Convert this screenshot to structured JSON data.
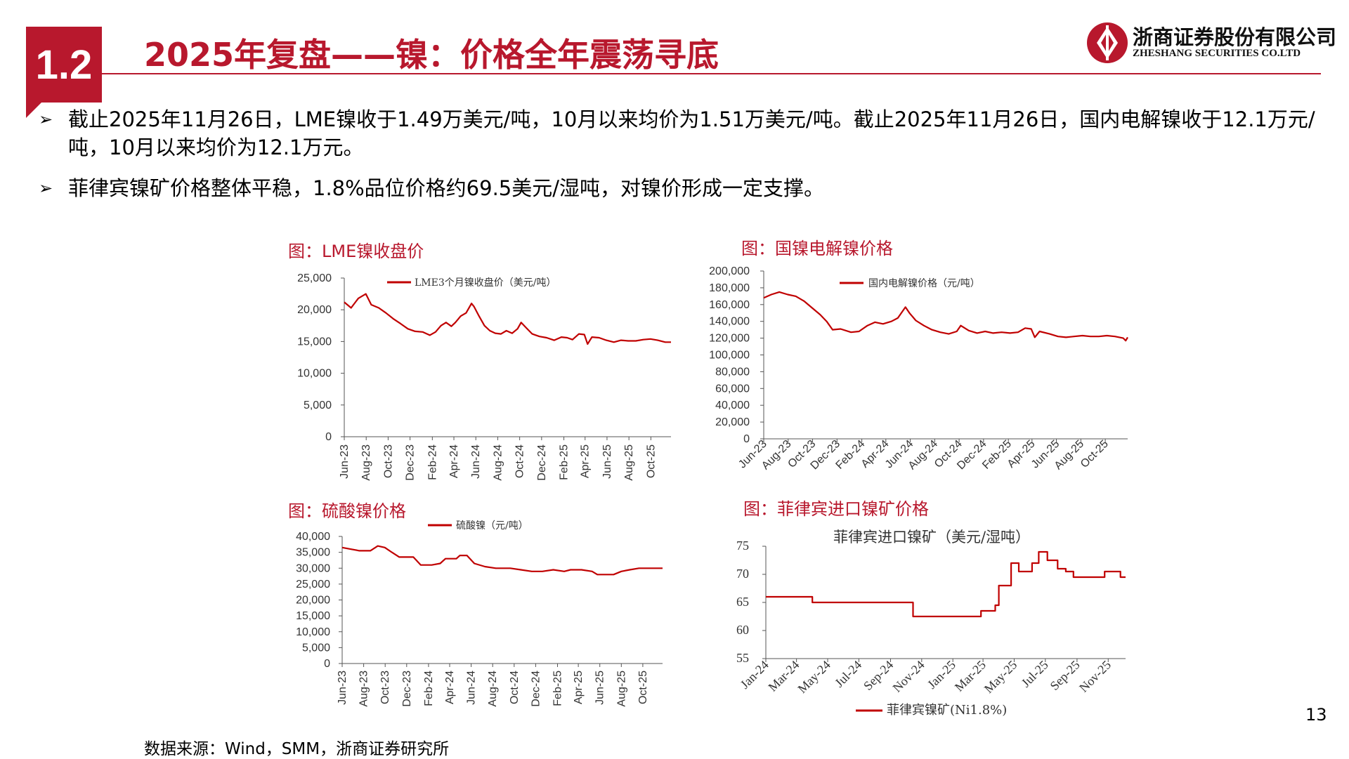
{
  "header": {
    "section_number": "1.2",
    "title": "2025年复盘——镍：价格全年震荡寻底"
  },
  "logo": {
    "name_cn": "浙商证券股份有限公司",
    "name_en": "ZHESHANG SECURITIES CO.LTD"
  },
  "bullets": [
    {
      "mark": "➢",
      "text": " 截止2025年11月26日，LME镍收于1.49万美元/吨，10月以来均价为1.51万美元/吨。截止2025年11月26日，国内电解镍收于12.1万元/吨，10月以来均价为12.1万元。"
    },
    {
      "mark": "➢",
      "text": "菲律宾镍矿价格整体平稳，1.8%品位价格约69.5美元/湿吨，对镍价形成一定支撑。"
    }
  ],
  "footer": {
    "source": "数据来源：Wind，SMM，浙商证券研究所",
    "page_number": "13"
  },
  "colors": {
    "accent": "#b8182d",
    "series": "#c00000"
  },
  "chart_data": [
    {
      "id": "lme",
      "type": "line",
      "title": "图：LME镍收盘价",
      "series_name": "LME3个月镍收盘价（美元/吨）",
      "ylim": [
        0,
        25000
      ],
      "yticks": [
        "25,000",
        "20,000",
        "15,000",
        "10,000",
        "5,000",
        "0"
      ],
      "yvals": [
        25000,
        20000,
        15000,
        10000,
        5000,
        0
      ],
      "xticks": [
        "Jun-23",
        "Aug-23",
        "Oct-23",
        "Dec-23",
        "Feb-24",
        "Apr-24",
        "Jun-24",
        "Aug-24",
        "Oct-24",
        "Dec-24",
        "Feb-25",
        "Apr-25",
        "Jun-25",
        "Aug-25",
        "Oct-25"
      ],
      "x_start": "2023-06-01",
      "x_end": "2025-11-26",
      "points": [
        [
          "2023-06-01",
          21200
        ],
        [
          "2023-06-20",
          20300
        ],
        [
          "2023-07-10",
          21800
        ],
        [
          "2023-07-31",
          22500
        ],
        [
          "2023-08-15",
          20800
        ],
        [
          "2023-09-05",
          20300
        ],
        [
          "2023-09-25",
          19500
        ],
        [
          "2023-10-15",
          18600
        ],
        [
          "2023-11-05",
          17800
        ],
        [
          "2023-11-25",
          17000
        ],
        [
          "2023-12-15",
          16600
        ],
        [
          "2024-01-05",
          16500
        ],
        [
          "2024-01-25",
          16000
        ],
        [
          "2024-02-10",
          16500
        ],
        [
          "2024-02-25",
          17500
        ],
        [
          "2024-03-10",
          18000
        ],
        [
          "2024-03-25",
          17400
        ],
        [
          "2024-04-05",
          18000
        ],
        [
          "2024-04-20",
          19000
        ],
        [
          "2024-05-05",
          19500
        ],
        [
          "2024-05-20",
          21000
        ],
        [
          "2024-05-27",
          20500
        ],
        [
          "2024-06-10",
          19000
        ],
        [
          "2024-06-25",
          17500
        ],
        [
          "2024-07-10",
          16700
        ],
        [
          "2024-07-25",
          16300
        ],
        [
          "2024-08-10",
          16200
        ],
        [
          "2024-08-25",
          16700
        ],
        [
          "2024-09-10",
          16300
        ],
        [
          "2024-09-25",
          17000
        ],
        [
          "2024-10-05",
          18000
        ],
        [
          "2024-10-20",
          17100
        ],
        [
          "2024-11-05",
          16200
        ],
        [
          "2024-11-25",
          15800
        ],
        [
          "2024-12-15",
          15600
        ],
        [
          "2025-01-05",
          15200
        ],
        [
          "2025-01-25",
          15700
        ],
        [
          "2025-02-10",
          15600
        ],
        [
          "2025-02-25",
          15300
        ],
        [
          "2025-03-15",
          16200
        ],
        [
          "2025-03-30",
          16100
        ],
        [
          "2025-04-08",
          14600
        ],
        [
          "2025-04-20",
          15700
        ],
        [
          "2025-05-10",
          15600
        ],
        [
          "2025-05-30",
          15200
        ],
        [
          "2025-06-20",
          14900
        ],
        [
          "2025-07-10",
          15200
        ],
        [
          "2025-07-30",
          15100
        ],
        [
          "2025-08-20",
          15100
        ],
        [
          "2025-09-10",
          15300
        ],
        [
          "2025-09-30",
          15400
        ],
        [
          "2025-10-20",
          15200
        ],
        [
          "2025-11-10",
          14900
        ],
        [
          "2025-11-26",
          14900
        ]
      ]
    },
    {
      "id": "domestic",
      "type": "line",
      "title": "图：国镍电解镍价格",
      "series_name": "国内电解镍价格（元/吨）",
      "ylim": [
        0,
        200000
      ],
      "yticks": [
        "200,000",
        "180,000",
        "160,000",
        "140,000",
        "120,000",
        "100,000",
        "80,000",
        "60,000",
        "40,000",
        "20,000",
        "0"
      ],
      "yvals": [
        200000,
        180000,
        160000,
        140000,
        120000,
        100000,
        80000,
        60000,
        40000,
        20000,
        0
      ],
      "xticks": [
        "Jun-23",
        "Aug-23",
        "Oct-23",
        "Dec-23",
        "Feb-24",
        "Apr-24",
        "Jun-24",
        "Aug-24",
        "Oct-24",
        "Dec-24",
        "Feb-25",
        "Apr-25",
        "Jun-25",
        "Aug-25",
        "Oct-25"
      ],
      "x_start": "2023-06-01",
      "x_end": "2025-11-26",
      "points": [
        [
          "2023-06-01",
          168000
        ],
        [
          "2023-06-20",
          172000
        ],
        [
          "2023-07-10",
          175000
        ],
        [
          "2023-07-31",
          172000
        ],
        [
          "2023-08-20",
          170000
        ],
        [
          "2023-09-10",
          164000
        ],
        [
          "2023-09-30",
          156000
        ],
        [
          "2023-10-20",
          148000
        ],
        [
          "2023-11-05",
          140000
        ],
        [
          "2023-11-20",
          130000
        ],
        [
          "2023-12-10",
          131000
        ],
        [
          "2024-01-05",
          127000
        ],
        [
          "2024-01-25",
          128000
        ],
        [
          "2024-02-15",
          135000
        ],
        [
          "2024-03-05",
          139000
        ],
        [
          "2024-03-25",
          137000
        ],
        [
          "2024-04-15",
          140000
        ],
        [
          "2024-05-01",
          144000
        ],
        [
          "2024-05-20",
          157000
        ],
        [
          "2024-05-30",
          150000
        ],
        [
          "2024-06-15",
          141000
        ],
        [
          "2024-07-05",
          135000
        ],
        [
          "2024-07-25",
          130000
        ],
        [
          "2024-08-15",
          127000
        ],
        [
          "2024-09-05",
          125000
        ],
        [
          "2024-09-25",
          128000
        ],
        [
          "2024-10-05",
          135000
        ],
        [
          "2024-10-25",
          129000
        ],
        [
          "2024-11-15",
          126000
        ],
        [
          "2024-12-05",
          128000
        ],
        [
          "2024-12-25",
          126000
        ],
        [
          "2025-01-15",
          127000
        ],
        [
          "2025-02-05",
          126000
        ],
        [
          "2025-02-25",
          127000
        ],
        [
          "2025-03-15",
          132000
        ],
        [
          "2025-03-30",
          131000
        ],
        [
          "2025-04-08",
          121000
        ],
        [
          "2025-04-20",
          128000
        ],
        [
          "2025-05-15",
          125000
        ],
        [
          "2025-06-05",
          122000
        ],
        [
          "2025-06-25",
          121000
        ],
        [
          "2025-07-15",
          122000
        ],
        [
          "2025-08-05",
          123000
        ],
        [
          "2025-08-25",
          122000
        ],
        [
          "2025-09-15",
          122000
        ],
        [
          "2025-10-05",
          123000
        ],
        [
          "2025-10-25",
          122000
        ],
        [
          "2025-11-15",
          120000
        ],
        [
          "2025-11-21",
          117000
        ],
        [
          "2025-11-26",
          121000
        ]
      ]
    },
    {
      "id": "sulfate",
      "type": "line",
      "title": "图：硫酸镍价格",
      "series_name": "硫酸镍（元/吨）",
      "ylim": [
        0,
        40000
      ],
      "yticks": [
        "40,000",
        "35,000",
        "30,000",
        "25,000",
        "20,000",
        "15,000",
        "10,000",
        "5,000",
        "0"
      ],
      "yvals": [
        40000,
        35000,
        30000,
        25000,
        20000,
        15000,
        10000,
        5000,
        0
      ],
      "xticks": [
        "Jun-23",
        "Aug-23",
        "Oct-23",
        "Dec-23",
        "Feb-24",
        "Apr-24",
        "Jun-24",
        "Aug-24",
        "Oct-24",
        "Dec-24",
        "Feb-25",
        "Apr-25",
        "Jun-25",
        "Aug-25",
        "Oct-25"
      ],
      "x_start": "2023-06-01",
      "x_end": "2025-11-26",
      "points": [
        [
          "2023-06-01",
          36500
        ],
        [
          "2023-06-25",
          36000
        ],
        [
          "2023-07-20",
          35500
        ],
        [
          "2023-08-20",
          35500
        ],
        [
          "2023-09-10",
          37000
        ],
        [
          "2023-09-30",
          36500
        ],
        [
          "2023-10-20",
          35000
        ],
        [
          "2023-11-10",
          33500
        ],
        [
          "2023-12-20",
          33500
        ],
        [
          "2024-01-10",
          31000
        ],
        [
          "2024-02-10",
          31000
        ],
        [
          "2024-03-05",
          31500
        ],
        [
          "2024-03-20",
          33000
        ],
        [
          "2024-04-20",
          33000
        ],
        [
          "2024-04-30",
          34000
        ],
        [
          "2024-05-20",
          34000
        ],
        [
          "2024-06-10",
          31500
        ],
        [
          "2024-07-10",
          30500
        ],
        [
          "2024-08-10",
          30000
        ],
        [
          "2024-09-20",
          30000
        ],
        [
          "2024-10-20",
          29500
        ],
        [
          "2024-11-20",
          29000
        ],
        [
          "2024-12-20",
          29000
        ],
        [
          "2025-01-20",
          29500
        ],
        [
          "2025-02-20",
          29000
        ],
        [
          "2025-03-10",
          29500
        ],
        [
          "2025-04-10",
          29500
        ],
        [
          "2025-05-10",
          29000
        ],
        [
          "2025-05-25",
          28000
        ],
        [
          "2025-07-10",
          28000
        ],
        [
          "2025-08-01",
          29000
        ],
        [
          "2025-08-25",
          29500
        ],
        [
          "2025-09-20",
          30000
        ],
        [
          "2025-11-26",
          30000
        ]
      ]
    },
    {
      "id": "philippine",
      "type": "line",
      "title": "图：菲律宾进口镍矿价格",
      "inner_title": "菲律宾进口镍矿（美元/湿吨）",
      "series_name": "菲律宾镍矿(Ni1.8%)",
      "ylim": [
        55,
        75
      ],
      "yticks": [
        "75",
        "70",
        "65",
        "60",
        "55"
      ],
      "yvals": [
        75,
        70,
        65,
        60,
        55
      ],
      "xticks": [
        "Jan-24",
        "Mar-24",
        "May-24",
        "Jul-24",
        "Sep-24",
        "Nov-24",
        "Jan-25",
        "Mar-25",
        "May-25",
        "Jul-25",
        "Sep-25",
        "Nov-25"
      ],
      "x_start": "2024-01-01",
      "x_end": "2025-12-05",
      "points": [
        [
          "2024-01-01",
          66
        ],
        [
          "2024-04-01",
          66
        ],
        [
          "2024-04-01",
          65
        ],
        [
          "2024-10-15",
          65
        ],
        [
          "2024-10-15",
          62.5
        ],
        [
          "2025-02-25",
          62.5
        ],
        [
          "2025-02-25",
          63.5
        ],
        [
          "2025-03-25",
          63.5
        ],
        [
          "2025-03-25",
          64.5
        ],
        [
          "2025-04-01",
          64.5
        ],
        [
          "2025-04-01",
          68
        ],
        [
          "2025-04-25",
          68
        ],
        [
          "2025-04-25",
          72
        ],
        [
          "2025-05-10",
          72
        ],
        [
          "2025-05-10",
          70.5
        ],
        [
          "2025-06-05",
          70.5
        ],
        [
          "2025-06-05",
          72
        ],
        [
          "2025-06-18",
          72
        ],
        [
          "2025-06-18",
          74
        ],
        [
          "2025-07-05",
          74
        ],
        [
          "2025-07-05",
          72.5
        ],
        [
          "2025-07-25",
          72.5
        ],
        [
          "2025-07-25",
          71
        ],
        [
          "2025-08-10",
          71
        ],
        [
          "2025-08-10",
          70.5
        ],
        [
          "2025-08-25",
          70.5
        ],
        [
          "2025-08-25",
          69.5
        ],
        [
          "2025-10-25",
          69.5
        ],
        [
          "2025-10-25",
          70.5
        ],
        [
          "2025-11-25",
          70.5
        ],
        [
          "2025-11-25",
          69.5
        ],
        [
          "2025-12-05",
          69.5
        ]
      ]
    }
  ]
}
